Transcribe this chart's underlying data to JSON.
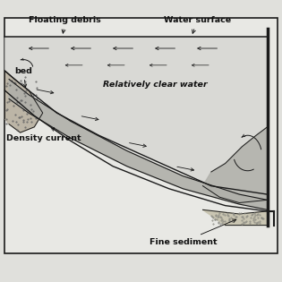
{
  "bg_color": "#e0e0dc",
  "box_bg": "#e8e8e4",
  "water_color": "#d0d0cc",
  "density_color": "#b0b0aa",
  "fine_sed_color": "#c8c4b0",
  "rock_color": "#b8b0a0",
  "line_color": "#1a1a1a",
  "text_color": "#111111",
  "labels": {
    "floating_debris": "Floating debris",
    "water_surface": "Water surface",
    "clear_water": "Relatively clear water",
    "bed": "bed",
    "density_current": "Density current",
    "fine_sediment": "Fine sediment"
  },
  "figsize": [
    3.15,
    3.15
  ],
  "dpi": 100
}
